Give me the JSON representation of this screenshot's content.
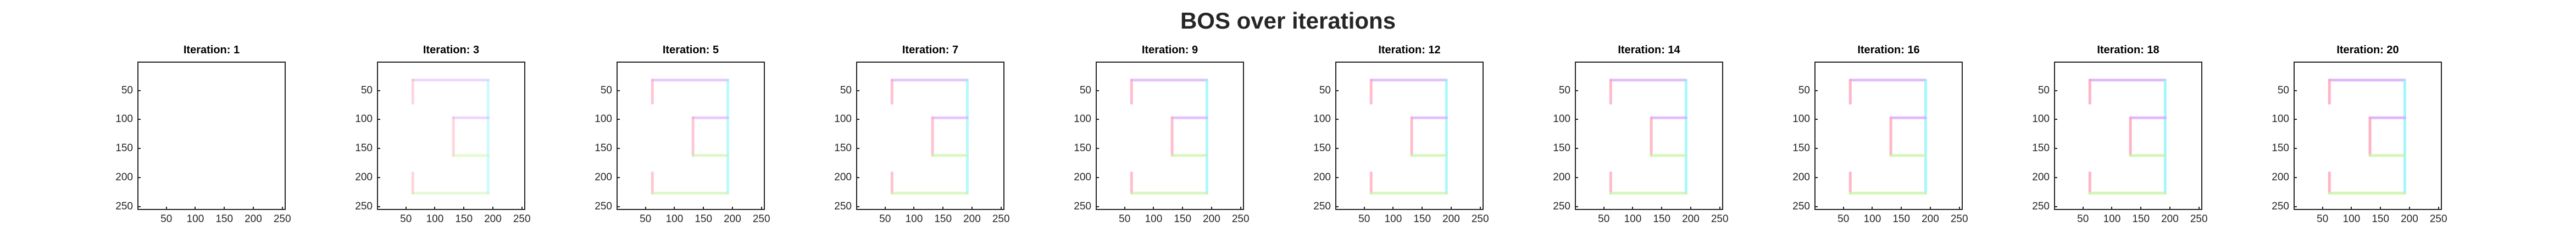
{
  "title": "BOS over iterations",
  "colors": {
    "cyan": "#8ef5ff",
    "magenta": "#d9a8ff",
    "pink": "#ffa3b8",
    "green": "#c9f5a6",
    "axis": "#262626"
  },
  "chart_data": {
    "type": "heatmap",
    "xlim": [
      0,
      256
    ],
    "ylim": [
      256,
      0
    ],
    "xticks": [
      50,
      100,
      150,
      200,
      250
    ],
    "yticks": [
      50,
      100,
      150,
      200,
      250
    ],
    "panels": [
      {
        "title": "Iteration: 1",
        "iteration": 1,
        "intensity": 0.0
      },
      {
        "title": "Iteration: 3",
        "iteration": 3,
        "intensity": 0.45
      },
      {
        "title": "Iteration: 5",
        "iteration": 5,
        "intensity": 0.6
      },
      {
        "title": "Iteration: 7",
        "iteration": 7,
        "intensity": 0.65
      },
      {
        "title": "Iteration: 9",
        "iteration": 9,
        "intensity": 0.7
      },
      {
        "title": "Iteration: 12",
        "iteration": 12,
        "intensity": 0.72
      },
      {
        "title": "Iteration: 14",
        "iteration": 14,
        "intensity": 0.75
      },
      {
        "title": "Iteration: 16",
        "iteration": 16,
        "intensity": 0.78
      },
      {
        "title": "Iteration: 18",
        "iteration": 18,
        "intensity": 0.8
      },
      {
        "title": "Iteration: 20",
        "iteration": 20,
        "intensity": 0.82
      }
    ],
    "segments": [
      {
        "name": "top-bar",
        "x": [
          60,
          190
        ],
        "y": [
          30,
          30
        ],
        "color": "magenta"
      },
      {
        "name": "left-top-vertical",
        "x": [
          60,
          60
        ],
        "y": [
          30,
          70
        ],
        "color": "pink"
      },
      {
        "name": "right-vertical",
        "x": [
          190,
          190
        ],
        "y": [
          30,
          225
        ],
        "color": "cyan"
      },
      {
        "name": "middle-bar",
        "x": [
          130,
          190
        ],
        "y": [
          95,
          95
        ],
        "color": "magenta"
      },
      {
        "name": "middle-left-vertical",
        "x": [
          130,
          130
        ],
        "y": [
          95,
          160
        ],
        "color": "pink"
      },
      {
        "name": "lower-bar",
        "x": [
          130,
          190
        ],
        "y": [
          160,
          160
        ],
        "color": "green"
      },
      {
        "name": "left-bottom-vertical",
        "x": [
          60,
          60
        ],
        "y": [
          190,
          225
        ],
        "color": "pink"
      },
      {
        "name": "bottom-bar",
        "x": [
          60,
          190
        ],
        "y": [
          225,
          225
        ],
        "color": "green"
      }
    ]
  }
}
